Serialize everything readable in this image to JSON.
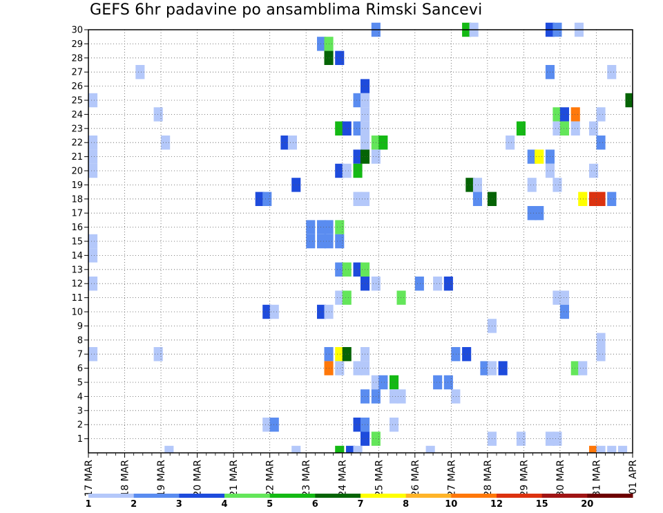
{
  "chart_data": {
    "type": "heatmap",
    "title": "GEFS 6hr padavine po ansamblima Rimski Sancevi",
    "xlabel": "",
    "ylabel": "",
    "y_tick_labels": [
      "1",
      "2",
      "3",
      "4",
      "5",
      "6",
      "7",
      "8",
      "9",
      "10",
      "11",
      "12",
      "13",
      "14",
      "15",
      "16",
      "17",
      "18",
      "19",
      "20",
      "21",
      "22",
      "23",
      "24",
      "25",
      "26",
      "27",
      "28",
      "29",
      "30"
    ],
    "x_tick_labels": [
      "17 MAR",
      "18 MAR",
      "19 MAR",
      "20 MAR",
      "21 MAR",
      "22 MAR",
      "23 MAR",
      "24 MAR",
      "25 MAR",
      "26 MAR",
      "27 MAR",
      "28 MAR",
      "29 MAR",
      "30 MAR",
      "31 MAR",
      "01 APR"
    ],
    "x_range_days": [
      0,
      15
    ],
    "y_range_members": [
      0,
      30
    ],
    "grid": "dotted",
    "colorbar_labels": [
      "1",
      "2",
      "3",
      "4",
      "5",
      "6",
      "7",
      "8",
      "10",
      "12",
      "15",
      "20"
    ],
    "colorbar_colors": [
      "#b4c8fa",
      "#5a8cf0",
      "#1e4bdc",
      "#64e65a",
      "#14b914",
      "#056405",
      "#ffff00",
      "#ffb428",
      "#ff780a",
      "#dc320f",
      "#a01414",
      "#6e0000"
    ],
    "cells": [
      [
        30,
        7.8,
        2
      ],
      [
        30,
        10.3,
        5
      ],
      [
        30,
        10.5,
        1
      ],
      [
        30,
        12.6,
        3
      ],
      [
        30,
        12.8,
        2
      ],
      [
        30,
        13.4,
        1
      ],
      [
        29,
        6.3,
        2
      ],
      [
        29,
        6.5,
        4
      ],
      [
        28,
        6.5,
        6
      ],
      [
        28,
        6.8,
        3
      ],
      [
        27,
        1.3,
        1
      ],
      [
        27,
        12.6,
        2
      ],
      [
        27,
        14.3,
        1
      ],
      [
        26,
        7.5,
        3
      ],
      [
        25,
        0,
        1
      ],
      [
        25,
        7.3,
        2
      ],
      [
        25,
        7.5,
        1
      ],
      [
        25,
        14.8,
        6
      ],
      [
        24,
        1.8,
        1
      ],
      [
        24,
        7.5,
        1
      ],
      [
        24,
        12.8,
        4
      ],
      [
        24,
        13,
        3
      ],
      [
        24,
        13.3,
        9
      ],
      [
        24,
        14,
        1
      ],
      [
        23,
        6.8,
        5
      ],
      [
        23,
        7,
        3
      ],
      [
        23,
        7.3,
        2
      ],
      [
        23,
        7.5,
        1
      ],
      [
        23,
        11.8,
        5
      ],
      [
        23,
        12.8,
        1
      ],
      [
        23,
        13,
        4
      ],
      [
        23,
        13.3,
        1
      ],
      [
        23,
        13.8,
        1
      ],
      [
        22,
        0,
        1
      ],
      [
        22,
        2,
        1
      ],
      [
        22,
        5.3,
        3
      ],
      [
        22,
        5.5,
        1
      ],
      [
        22,
        7.5,
        1
      ],
      [
        22,
        7.8,
        4
      ],
      [
        22,
        8,
        5
      ],
      [
        22,
        11.5,
        1
      ],
      [
        22,
        14,
        2
      ],
      [
        21,
        0,
        1
      ],
      [
        21,
        7.3,
        3
      ],
      [
        21,
        7.5,
        6
      ],
      [
        21,
        7.8,
        1
      ],
      [
        21,
        12.1,
        2
      ],
      [
        21,
        12.3,
        7
      ],
      [
        21,
        12.6,
        2
      ],
      [
        20,
        0,
        1
      ],
      [
        20,
        6.8,
        3
      ],
      [
        20,
        7,
        1
      ],
      [
        20,
        7.3,
        5
      ],
      [
        20,
        12.6,
        1
      ],
      [
        20,
        13.8,
        1
      ],
      [
        19,
        5.6,
        3
      ],
      [
        19,
        10.4,
        6
      ],
      [
        19,
        10.6,
        1
      ],
      [
        19,
        12.1,
        1
      ],
      [
        19,
        12.8,
        1
      ],
      [
        18,
        4.6,
        3
      ],
      [
        18,
        4.8,
        2
      ],
      [
        18,
        7.3,
        1
      ],
      [
        18,
        7.5,
        1
      ],
      [
        18,
        10.6,
        2
      ],
      [
        18,
        11,
        6
      ],
      [
        18,
        13.5,
        7
      ],
      [
        18,
        13.8,
        10
      ],
      [
        18,
        14,
        10
      ],
      [
        18,
        14.3,
        2
      ],
      [
        17,
        12.1,
        2
      ],
      [
        17,
        12.3,
        2
      ],
      [
        16,
        6,
        2
      ],
      [
        16,
        6.3,
        2
      ],
      [
        16,
        6.5,
        2
      ],
      [
        16,
        6.8,
        4
      ],
      [
        15,
        0,
        1
      ],
      [
        15,
        6,
        2
      ],
      [
        15,
        6.3,
        2
      ],
      [
        15,
        6.5,
        2
      ],
      [
        15,
        6.8,
        2
      ],
      [
        14,
        0,
        1
      ],
      [
        13,
        6.8,
        2
      ],
      [
        13,
        7,
        4
      ],
      [
        13,
        7.3,
        3
      ],
      [
        13,
        7.5,
        4
      ],
      [
        12,
        0,
        1
      ],
      [
        12,
        7.5,
        3
      ],
      [
        12,
        7.8,
        1
      ],
      [
        12,
        9,
        2
      ],
      [
        12,
        9.5,
        1
      ],
      [
        12,
        9.8,
        3
      ],
      [
        11,
        6.8,
        1
      ],
      [
        11,
        7,
        4
      ],
      [
        11,
        8.5,
        4
      ],
      [
        11,
        12.8,
        1
      ],
      [
        11,
        13,
        1
      ],
      [
        10,
        4.8,
        3
      ],
      [
        10,
        5,
        1
      ],
      [
        10,
        6.3,
        3
      ],
      [
        10,
        6.5,
        1
      ],
      [
        10,
        13,
        2
      ],
      [
        9,
        11,
        1
      ],
      [
        8,
        14,
        1
      ],
      [
        7,
        0,
        1
      ],
      [
        7,
        1.8,
        1
      ],
      [
        7,
        6.5,
        2
      ],
      [
        7,
        6.8,
        7
      ],
      [
        7,
        7,
        6
      ],
      [
        7,
        7.5,
        1
      ],
      [
        7,
        10,
        2
      ],
      [
        7,
        10.3,
        3
      ],
      [
        7,
        14,
        1
      ],
      [
        6,
        6.5,
        9
      ],
      [
        6,
        6.8,
        1
      ],
      [
        6,
        7.3,
        1
      ],
      [
        6,
        7.5,
        1
      ],
      [
        6,
        10.8,
        2
      ],
      [
        6,
        11,
        1
      ],
      [
        6,
        11.3,
        3
      ],
      [
        6,
        13.3,
        4
      ],
      [
        6,
        13.5,
        1
      ],
      [
        5,
        7.8,
        1
      ],
      [
        5,
        8,
        2
      ],
      [
        5,
        8.3,
        5
      ],
      [
        5,
        9.5,
        2
      ],
      [
        5,
        9.8,
        2
      ],
      [
        4,
        7.5,
        2
      ],
      [
        4,
        7.8,
        2
      ],
      [
        4,
        8.3,
        1
      ],
      [
        4,
        8.5,
        1
      ],
      [
        4,
        10,
        1
      ],
      [
        2,
        4.8,
        1
      ],
      [
        2,
        5,
        2
      ],
      [
        2,
        7.3,
        3
      ],
      [
        2,
        7.5,
        2
      ],
      [
        2,
        8.3,
        1
      ],
      [
        1,
        7.5,
        3
      ],
      [
        1,
        7.8,
        4
      ],
      [
        1,
        11,
        1
      ],
      [
        1,
        11.8,
        1
      ],
      [
        1,
        12.6,
        1
      ],
      [
        1,
        12.8,
        1
      ],
      [
        0,
        2.1,
        1
      ],
      [
        0,
        5.6,
        1
      ],
      [
        0,
        6.8,
        5
      ],
      [
        0,
        7.1,
        3
      ],
      [
        0,
        7.3,
        1
      ],
      [
        0,
        9.3,
        1
      ],
      [
        0,
        13.8,
        9
      ],
      [
        0,
        14,
        1
      ],
      [
        0,
        14.3,
        1
      ],
      [
        0,
        14.6,
        1
      ]
    ]
  }
}
